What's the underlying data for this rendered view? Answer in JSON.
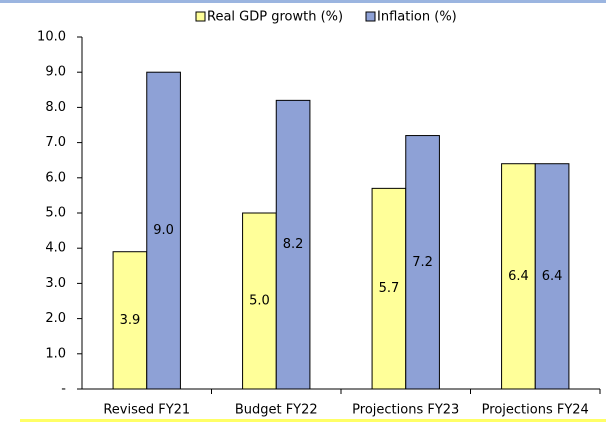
{
  "chart_data": {
    "type": "bar",
    "categories": [
      "Revised FY21",
      "Budget FY22",
      "Projections FY23",
      "Projections FY24"
    ],
    "series": [
      {
        "name": "Real GDP growth (%)",
        "color": "#ffff99",
        "values": [
          3.9,
          5.0,
          5.7,
          6.4
        ],
        "value_labels": [
          "3.9",
          "5.0",
          "5.7",
          "6.4"
        ]
      },
      {
        "name": "Inflation (%)",
        "color": "#8ea1d6",
        "values": [
          9.0,
          8.2,
          7.2,
          6.4
        ],
        "value_labels": [
          "9.0",
          "8.2",
          "7.2",
          "6.4"
        ]
      }
    ],
    "ylim": [
      0,
      10
    ],
    "yticks": [
      {
        "value": 0,
        "label": "-"
      },
      {
        "value": 1,
        "label": "1.0"
      },
      {
        "value": 2,
        "label": "2.0"
      },
      {
        "value": 3,
        "label": "3.0"
      },
      {
        "value": 4,
        "label": "4.0"
      },
      {
        "value": 5,
        "label": "5.0"
      },
      {
        "value": 6,
        "label": "6.0"
      },
      {
        "value": 7,
        "label": "7.0"
      },
      {
        "value": 8,
        "label": "8.0"
      },
      {
        "value": 9,
        "label": "9.0"
      },
      {
        "value": 10,
        "label": "10.0"
      }
    ],
    "legend": "top"
  }
}
